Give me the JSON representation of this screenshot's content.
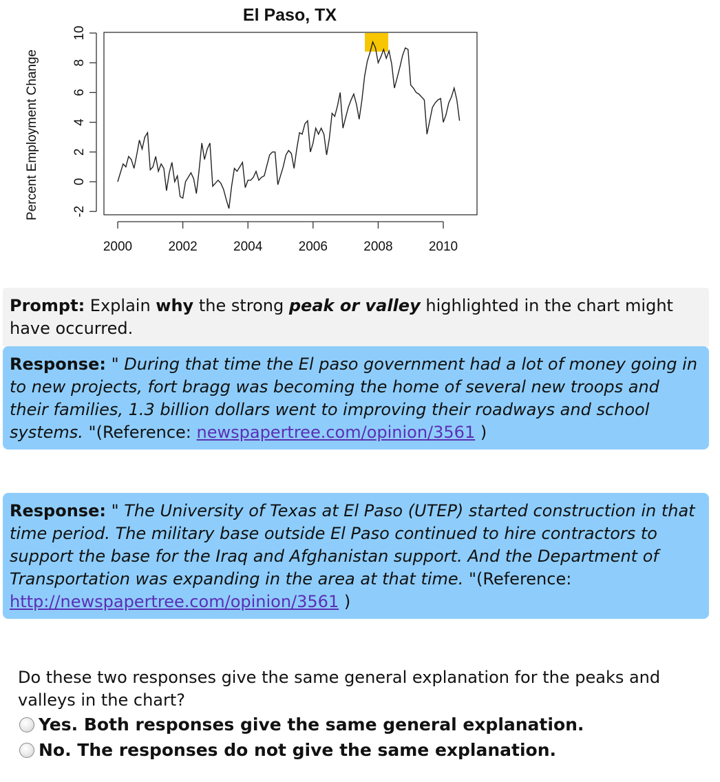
{
  "chart_data": {
    "type": "line",
    "title": "El Paso, TX",
    "ylabel": "Percent Employment Change",
    "xlabel": "",
    "xlim": [
      2000,
      2010.6
    ],
    "ylim": [
      -2,
      10
    ],
    "x_ticks": [
      "2000",
      "2002",
      "2004",
      "2006",
      "2008",
      "2010"
    ],
    "y_ticks": [
      "-2",
      "0",
      "2",
      "4",
      "6",
      "8",
      "10"
    ],
    "highlight": {
      "x": 2007.95,
      "y": 9.4,
      "color": "#f7c600"
    },
    "series": [
      {
        "x": [
          2000.0,
          2000.083,
          2000.167,
          2000.25,
          2000.333,
          2000.417,
          2000.5,
          2000.583,
          2000.667,
          2000.75,
          2000.833,
          2000.917,
          2001.0,
          2001.083,
          2001.167,
          2001.25,
          2001.333,
          2001.417,
          2001.5,
          2001.583,
          2001.667,
          2001.75,
          2001.833,
          2001.917,
          2002.0,
          2002.083,
          2002.167,
          2002.25,
          2002.333,
          2002.417,
          2002.5,
          2002.583,
          2002.667,
          2002.75,
          2002.833,
          2002.917,
          2003.0,
          2003.083,
          2003.167,
          2003.25,
          2003.333,
          2003.417,
          2003.5,
          2003.583,
          2003.667,
          2003.75,
          2003.833,
          2003.917,
          2004.0,
          2004.083,
          2004.167,
          2004.25,
          2004.333,
          2004.417,
          2004.5,
          2004.583,
          2004.667,
          2004.75,
          2004.833,
          2004.917,
          2005.0,
          2005.083,
          2005.167,
          2005.25,
          2005.333,
          2005.417,
          2005.5,
          2005.583,
          2005.667,
          2005.75,
          2005.833,
          2005.917,
          2006.0,
          2006.083,
          2006.167,
          2006.25,
          2006.333,
          2006.417,
          2006.5,
          2006.583,
          2006.667,
          2006.75,
          2006.833,
          2006.917,
          2007.0,
          2007.083,
          2007.167,
          2007.25,
          2007.333,
          2007.417,
          2007.5,
          2007.583,
          2007.667,
          2007.75,
          2007.833,
          2007.917,
          2008.0,
          2008.083,
          2008.167,
          2008.25,
          2008.333,
          2008.417,
          2008.5,
          2008.583,
          2008.667,
          2008.75,
          2008.833,
          2008.917,
          2009.0,
          2009.083,
          2009.167,
          2009.25,
          2009.333,
          2009.417,
          2009.5,
          2009.583,
          2009.667,
          2009.75,
          2009.833,
          2009.917,
          2010.0,
          2010.083,
          2010.167,
          2010.25,
          2010.333,
          2010.417,
          2010.5
        ],
        "y": [
          0.0,
          0.6,
          1.2,
          1.0,
          1.7,
          1.5,
          0.9,
          1.8,
          2.8,
          2.2,
          3.0,
          3.3,
          0.8,
          1.0,
          1.7,
          0.7,
          1.2,
          0.9,
          -0.6,
          0.6,
          1.3,
          0.0,
          0.4,
          -1.0,
          -1.1,
          0.0,
          0.3,
          0.6,
          0.2,
          -0.8,
          0.8,
          2.6,
          1.5,
          2.2,
          2.6,
          -0.3,
          -0.1,
          0.1,
          -0.1,
          -0.5,
          -1.2,
          -1.8,
          -0.3,
          0.9,
          0.7,
          1.0,
          1.3,
          -0.4,
          0.1,
          0.1,
          0.3,
          0.7,
          0.1,
          0.3,
          0.4,
          1.1,
          1.8,
          2.0,
          2.0,
          -0.2,
          0.4,
          1.0,
          1.8,
          2.1,
          1.9,
          0.9,
          2.2,
          3.3,
          3.2,
          3.9,
          4.1,
          2.0,
          2.6,
          3.6,
          3.2,
          3.6,
          3.2,
          1.8,
          2.9,
          4.6,
          4.4,
          5.1,
          6.0,
          3.6,
          4.3,
          5.0,
          5.5,
          5.9,
          5.2,
          4.2,
          5.5,
          7.1,
          8.1,
          8.7,
          9.4,
          9.0,
          8.0,
          8.4,
          8.9,
          8.3,
          8.8,
          7.9,
          6.3,
          7.0,
          7.7,
          8.5,
          9.0,
          8.9,
          6.5,
          6.3,
          6.0,
          5.9,
          5.7,
          5.5,
          3.2,
          4.1,
          5.0,
          5.3,
          5.5,
          5.6,
          4.0,
          4.5,
          5.3,
          5.7,
          6.3,
          5.5,
          4.1
        ]
      }
    ]
  },
  "prompt": {
    "lead": "Prompt:",
    "text1": " Explain ",
    "bold": "why",
    "text2": " the strong ",
    "emph": "peak or valley",
    "text3": " highlighted in the chart might have occurred."
  },
  "responses": [
    {
      "lead": "Response:",
      "quote": " \" During that time the El paso government had a lot of money going in to new projects, fort bragg was becoming the home of several new troops and their families, 1.3 billion dollars went to improving their roadways and school systems. \"",
      "ref_prefix": "(Reference: ",
      "link": "newspapertree.com/opinion/3561",
      "ref_suffix": " )"
    },
    {
      "lead": "Response:",
      "quote": " \" The University of Texas at El Paso (UTEP) started construction in that time period. The military base outside El Paso continued to hire contractors to support the base for the Iraq and Afghanistan support. And the Department of Transportation was expanding in the area at that time. \"",
      "ref_prefix": "(Reference: ",
      "link": "http://newspapertree.com/opinion/3561",
      "ref_suffix": " )"
    }
  ],
  "question": {
    "text": "Do these two responses give the same general explanation for the peaks and valleys in the chart?",
    "options": [
      "Yes. Both responses give the same general explanation.",
      "No. The responses do not give the same explanation."
    ]
  }
}
